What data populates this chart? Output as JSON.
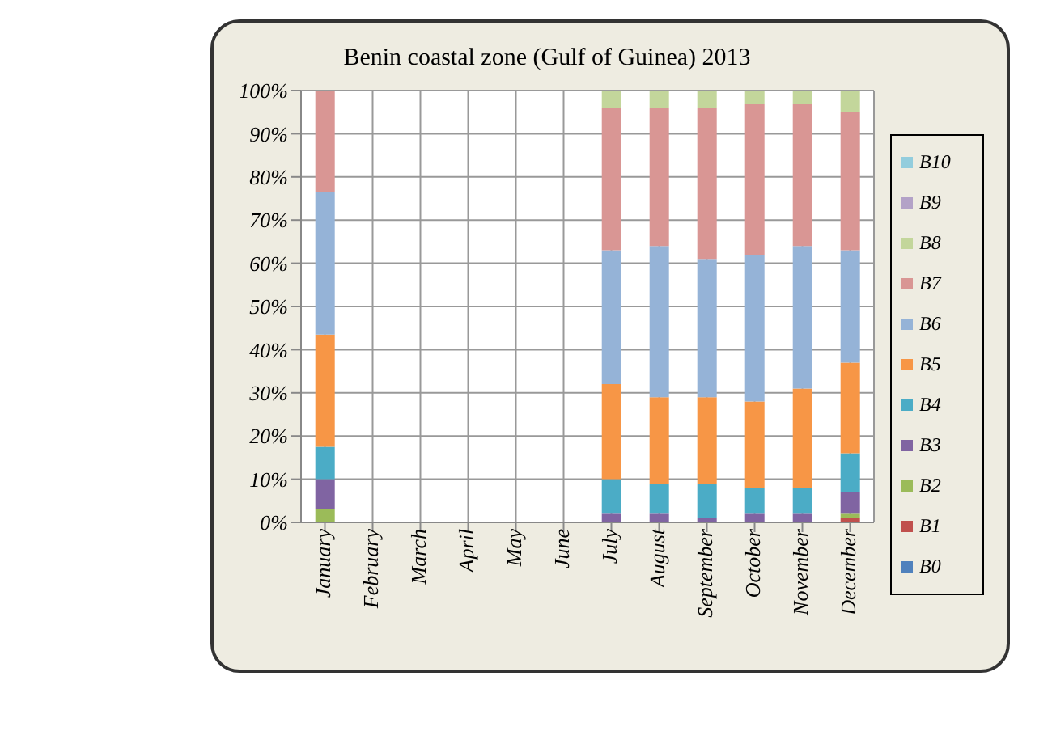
{
  "chart_data": {
    "type": "bar",
    "title": "Benin coastal zone (Gulf of Guinea) 2013",
    "stacked": true,
    "grid": true,
    "legend": "right",
    "categories": [
      "January",
      "February",
      "March",
      "April",
      "May",
      "June",
      "July",
      "August",
      "September",
      "October",
      "November",
      "December"
    ],
    "ylim": [
      0,
      100
    ],
    "yticks": [
      {
        "value": 0,
        "label": "0%"
      },
      {
        "value": 10,
        "label": "10%"
      },
      {
        "value": 20,
        "label": "20%"
      },
      {
        "value": 30,
        "label": "30%"
      },
      {
        "value": 40,
        "label": "40%"
      },
      {
        "value": 50,
        "label": "50%"
      },
      {
        "value": 60,
        "label": "60%"
      },
      {
        "value": 70,
        "label": "70%"
      },
      {
        "value": 80,
        "label": "80%"
      },
      {
        "value": 90,
        "label": "90%"
      },
      {
        "value": 100,
        "label": "100%"
      }
    ],
    "series": [
      {
        "name": "B0",
        "color": "#4f81bd",
        "values": [
          0,
          null,
          null,
          null,
          null,
          null,
          0,
          0,
          0,
          0,
          0,
          0
        ]
      },
      {
        "name": "B1",
        "color": "#c0504d",
        "values": [
          0,
          null,
          null,
          null,
          null,
          null,
          0,
          0,
          0,
          0,
          0,
          1
        ]
      },
      {
        "name": "B2",
        "color": "#9bbb59",
        "values": [
          3,
          null,
          null,
          null,
          null,
          null,
          0,
          0,
          0,
          0,
          0,
          1
        ]
      },
      {
        "name": "B3",
        "color": "#8064a2",
        "values": [
          7,
          null,
          null,
          null,
          null,
          null,
          2,
          2,
          1,
          2,
          2,
          5
        ]
      },
      {
        "name": "B4",
        "color": "#4bacc6",
        "values": [
          7.5,
          null,
          null,
          null,
          null,
          null,
          8,
          7,
          8,
          6,
          6,
          9
        ]
      },
      {
        "name": "B5",
        "color": "#f79646",
        "values": [
          26,
          null,
          null,
          null,
          null,
          null,
          22,
          20,
          20,
          20,
          23,
          21
        ]
      },
      {
        "name": "B6",
        "color": "#95b3d7",
        "values": [
          33,
          null,
          null,
          null,
          null,
          null,
          31,
          35,
          32,
          34,
          33,
          26
        ]
      },
      {
        "name": "B7",
        "color": "#d99694",
        "values": [
          23.5,
          null,
          null,
          null,
          null,
          null,
          33,
          32,
          35,
          35,
          33,
          32
        ]
      },
      {
        "name": "B8",
        "color": "#c3d69b",
        "values": [
          0,
          null,
          null,
          null,
          null,
          null,
          4,
          4,
          4,
          3,
          3,
          5
        ]
      },
      {
        "name": "B9",
        "color": "#b3a2c7",
        "values": [
          0,
          null,
          null,
          null,
          null,
          null,
          0,
          0,
          0,
          0,
          0,
          0
        ]
      },
      {
        "name": "B10",
        "color": "#93cddd",
        "values": [
          0,
          null,
          null,
          null,
          null,
          null,
          0,
          0,
          0,
          0,
          0,
          0
        ]
      }
    ]
  }
}
